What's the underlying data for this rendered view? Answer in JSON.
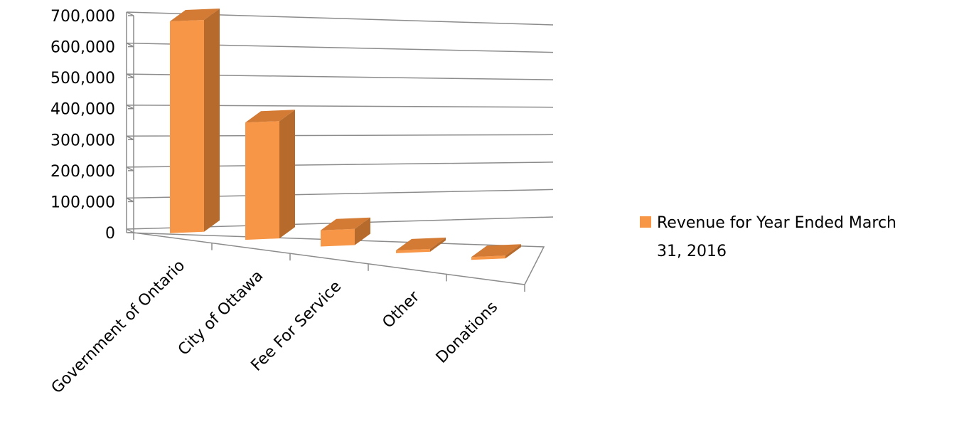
{
  "chart_data": {
    "type": "bar",
    "title": "",
    "xlabel": "",
    "ylabel": "",
    "categories": [
      "Government of Ontario",
      "City of Ottawa",
      "Fee For Service",
      "Other",
      "Donations"
    ],
    "series": [
      {
        "name": "Revenue for Year Ended March 31, 2016",
        "values": [
          690000,
          390000,
          55000,
          8000,
          3000
        ],
        "color": "#F79646"
      }
    ],
    "ylim": [
      0,
      700000
    ],
    "yticks": [
      "0",
      "100,000",
      "200,000",
      "300,000",
      "400,000",
      "500,000",
      "600,000",
      "700,000"
    ],
    "grid": true,
    "three_d": true,
    "legend": {
      "position": "right",
      "lines": [
        "Revenue for Year Ended March",
        "31, 2016"
      ]
    }
  }
}
